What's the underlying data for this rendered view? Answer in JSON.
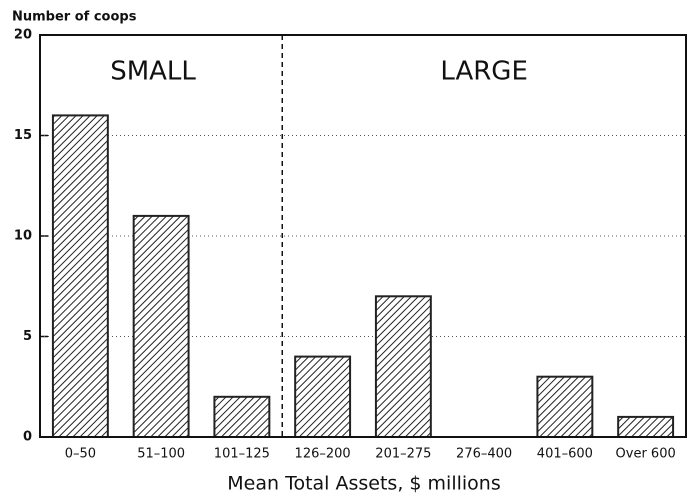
{
  "chart_data": {
    "type": "bar",
    "y_axis_label": "Number of coops",
    "x_axis_label": "Mean Total Assets, $ millions",
    "categories": [
      "0–50",
      "51–100",
      "101–125",
      "126–200",
      "201–275",
      "276–400",
      "401–600",
      "Over 600"
    ],
    "values": [
      16,
      11,
      2,
      4,
      7,
      0,
      3,
      1
    ],
    "color": "#222222",
    "ylim": [
      0,
      20
    ],
    "yticks": [
      0,
      5,
      10,
      15,
      20
    ],
    "grid": true,
    "annotations": [
      "SMALL",
      "LARGE"
    ]
  }
}
